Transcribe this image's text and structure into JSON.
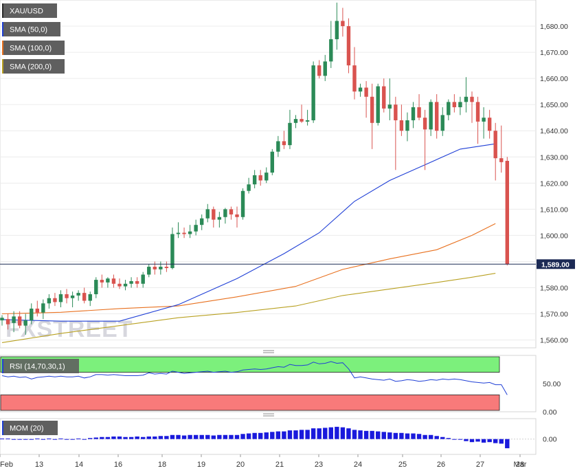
{
  "legend": {
    "symbol": "XAU/USD",
    "sma50": "SMA (50,0)",
    "sma100": "SMA (100,0)",
    "sma200": "SMA (200,0)"
  },
  "watermark": "FXSTREET",
  "last_price_label": "1,589.00",
  "colors": {
    "up": "#2b8a57",
    "down": "#d9534f",
    "sma50": "#1f3fd6",
    "sma100": "#e8701e",
    "sma200": "#b8a020",
    "rsi_line": "#1f3fd6",
    "rsi_overbought_band": "#7cf07c",
    "rsi_oversold_band": "#f87a7a",
    "mom_bar": "#1a1adc"
  },
  "chart_data": [
    {
      "type": "candlestick",
      "title": "XAU/USD",
      "ylim": [
        1557,
        1690
      ],
      "y_ticks": [
        "1,560.00",
        "1,570.00",
        "1,580.00",
        "1,590.00",
        "1,600.00",
        "1,610.00",
        "1,620.00",
        "1,630.00",
        "1,640.00",
        "1,650.00",
        "1,660.00",
        "1,670.00",
        "1,680.00"
      ],
      "y_tick_values": [
        1560,
        1570,
        1580,
        1590,
        1600,
        1610,
        1620,
        1630,
        1640,
        1650,
        1660,
        1670,
        1680
      ],
      "x_labels": [
        "Feb",
        "13",
        "14",
        "16",
        "18",
        "19",
        "20",
        "21",
        "23",
        "24",
        "25",
        "26",
        "27",
        "28",
        "Mar"
      ],
      "last_price": 1589.0,
      "ohlc": [
        [
          1567.5,
          1569.5,
          1565.5,
          1568.5
        ],
        [
          1568,
          1570,
          1564,
          1566
        ],
        [
          1566.5,
          1571,
          1563,
          1569
        ],
        [
          1569,
          1571,
          1564.5,
          1565.5
        ],
        [
          1565.5,
          1570,
          1562,
          1567.5
        ],
        [
          1567.5,
          1574,
          1566,
          1572
        ],
        [
          1572,
          1575,
          1569,
          1570.5
        ],
        [
          1570.5,
          1575.5,
          1568,
          1574
        ],
        [
          1574,
          1577.5,
          1572,
          1576
        ],
        [
          1576,
          1578,
          1573,
          1574.5
        ],
        [
          1574.5,
          1579,
          1572.5,
          1577.5
        ],
        [
          1577.5,
          1579.5,
          1574,
          1576
        ],
        [
          1576,
          1578.5,
          1572.5,
          1577
        ],
        [
          1577,
          1579,
          1575,
          1578
        ],
        [
          1578,
          1580,
          1574,
          1575
        ],
        [
          1575,
          1578.5,
          1573,
          1577.5
        ],
        [
          1577.5,
          1584,
          1576,
          1583
        ],
        [
          1583,
          1585,
          1580,
          1582
        ],
        [
          1582,
          1584,
          1580,
          1583.5
        ],
        [
          1583.5,
          1585,
          1580,
          1581.5
        ],
        [
          1581.5,
          1583.5,
          1579.5,
          1580.5
        ],
        [
          1580.5,
          1583,
          1579,
          1581.5
        ],
        [
          1581.5,
          1584,
          1580,
          1582.5
        ],
        [
          1582.5,
          1584,
          1580,
          1581.5
        ],
        [
          1581.5,
          1586,
          1580,
          1585
        ],
        [
          1585,
          1589,
          1584,
          1588
        ],
        [
          1588,
          1590,
          1585,
          1587
        ],
        [
          1587,
          1590,
          1585,
          1588
        ],
        [
          1588,
          1590,
          1586,
          1587.5
        ],
        [
          1587.5,
          1603,
          1587,
          1600.5
        ],
        [
          1600.5,
          1605,
          1599,
          1601
        ],
        [
          1601,
          1603,
          1599,
          1600.5
        ],
        [
          1600.5,
          1604,
          1599,
          1601.5
        ],
        [
          1601.5,
          1606,
          1600,
          1604
        ],
        [
          1604,
          1608,
          1602,
          1606.5
        ],
        [
          1606.5,
          1612,
          1605,
          1610
        ],
        [
          1610,
          1611,
          1603,
          1606
        ],
        [
          1606,
          1609,
          1603,
          1607
        ],
        [
          1607,
          1610.5,
          1604.5,
          1610
        ],
        [
          1610,
          1611,
          1606,
          1608
        ],
        [
          1608,
          1611,
          1603,
          1607
        ],
        [
          1607,
          1618,
          1606,
          1617
        ],
        [
          1617,
          1622,
          1616,
          1619.5
        ],
        [
          1619.5,
          1625,
          1618,
          1623
        ],
        [
          1623,
          1625,
          1619,
          1621
        ],
        [
          1621,
          1626,
          1620,
          1624
        ],
        [
          1624,
          1633,
          1623,
          1632
        ],
        [
          1632,
          1638,
          1630,
          1636
        ],
        [
          1636,
          1640,
          1633,
          1634.5
        ],
        [
          1634.5,
          1648,
          1633,
          1643
        ],
        [
          1643,
          1646,
          1641,
          1644.5
        ],
        [
          1644.5,
          1650,
          1643,
          1643.5
        ],
        [
          1643.5,
          1648,
          1642,
          1644
        ],
        [
          1644,
          1666.5,
          1643,
          1665
        ],
        [
          1665,
          1667,
          1660,
          1661
        ],
        [
          1661,
          1669,
          1659,
          1666.5
        ],
        [
          1666.5,
          1682,
          1664,
          1675
        ],
        [
          1675,
          1689,
          1671,
          1682
        ],
        [
          1682,
          1687,
          1676,
          1680
        ],
        [
          1680,
          1683,
          1662,
          1665
        ],
        [
          1665,
          1672,
          1652,
          1655
        ],
        [
          1655,
          1658,
          1653,
          1656.5
        ],
        [
          1656.5,
          1659,
          1645,
          1653
        ],
        [
          1653,
          1658,
          1633,
          1643
        ],
        [
          1643,
          1658,
          1642,
          1657
        ],
        [
          1657,
          1660,
          1647,
          1648.5
        ],
        [
          1648.5,
          1660,
          1644,
          1650
        ],
        [
          1650,
          1653,
          1625,
          1644
        ],
        [
          1644,
          1650,
          1638,
          1640
        ],
        [
          1640,
          1647,
          1636,
          1644
        ],
        [
          1644,
          1651,
          1641,
          1649
        ],
        [
          1649,
          1654,
          1644,
          1645
        ],
        [
          1645,
          1648,
          1625,
          1640.5
        ],
        [
          1640.5,
          1652,
          1638,
          1651
        ],
        [
          1651,
          1654,
          1637,
          1640
        ],
        [
          1640,
          1649,
          1638,
          1646
        ],
        [
          1646,
          1652,
          1644,
          1651
        ],
        [
          1651,
          1654,
          1647,
          1649
        ],
        [
          1649,
          1653,
          1646,
          1651
        ],
        [
          1651,
          1660.5,
          1647,
          1653
        ],
        [
          1653,
          1655,
          1643,
          1651
        ],
        [
          1651,
          1653,
          1635,
          1643.5
        ],
        [
          1643.5,
          1649,
          1637,
          1645
        ],
        [
          1645,
          1648,
          1637,
          1640
        ],
        [
          1640,
          1643,
          1621,
          1629.5
        ],
        [
          1629.5,
          1642,
          1624,
          1628
        ],
        [
          1628.5,
          1630,
          1588.5,
          1589
        ]
      ],
      "sma50": [
        [
          0,
          1567.8
        ],
        [
          10,
          1567.2
        ],
        [
          20,
          1567.2
        ],
        [
          30,
          1573.5
        ],
        [
          40,
          1583.5
        ],
        [
          48,
          1593
        ],
        [
          54,
          1601
        ],
        [
          60,
          1613
        ],
        [
          66,
          1621
        ],
        [
          72,
          1627
        ],
        [
          78,
          1633
        ],
        [
          84,
          1635
        ]
      ],
      "sma100": [
        [
          0,
          1570
        ],
        [
          10,
          1570.6
        ],
        [
          20,
          1572
        ],
        [
          30,
          1573
        ],
        [
          40,
          1576.5
        ],
        [
          50,
          1580.5
        ],
        [
          58,
          1587
        ],
        [
          66,
          1591
        ],
        [
          74,
          1594.5
        ],
        [
          80,
          1600
        ],
        [
          84,
          1604.5
        ]
      ],
      "sma200": [
        [
          0,
          1559
        ],
        [
          10,
          1562.5
        ],
        [
          20,
          1565.5
        ],
        [
          30,
          1568.5
        ],
        [
          40,
          1570.5
        ],
        [
          50,
          1573
        ],
        [
          58,
          1577
        ],
        [
          66,
          1579.5
        ],
        [
          74,
          1582
        ],
        [
          80,
          1584
        ],
        [
          84,
          1585.5
        ]
      ]
    },
    {
      "type": "line",
      "title": "RSI (14,70,30,1)",
      "ylim": [
        0,
        100
      ],
      "y_ticks": [
        "0.00",
        "50.00"
      ],
      "y_tick_values": [
        0,
        50
      ],
      "bands": {
        "overbought": 70,
        "oversold": 30
      },
      "values": [
        64,
        62,
        63,
        61,
        62,
        58,
        61,
        62,
        63,
        62,
        63,
        62,
        62,
        63,
        60,
        62,
        66,
        66,
        65,
        66,
        65,
        64,
        64,
        64,
        65,
        69,
        67,
        68,
        67,
        72,
        70,
        68,
        69,
        70,
        71,
        72,
        70,
        71,
        72,
        70,
        71,
        74,
        75,
        76,
        75,
        76,
        78,
        80,
        79,
        84,
        82,
        82,
        83,
        88,
        85,
        86,
        89,
        86,
        87,
        76,
        60,
        62,
        60,
        58,
        57,
        56,
        58,
        54,
        55,
        57,
        56,
        54,
        55,
        57,
        56,
        58,
        57,
        58,
        57,
        55,
        53,
        52,
        51,
        52,
        48,
        48,
        30
      ]
    },
    {
      "type": "bar",
      "title": "MOM (20)",
      "ylim": [
        -30,
        40
      ],
      "y_ticks": [
        "0.00"
      ],
      "y_tick_values": [
        0
      ],
      "values": [
        1,
        1,
        0,
        0,
        0,
        0,
        1,
        0,
        1,
        0,
        1,
        0,
        0,
        1,
        0,
        2,
        3,
        4,
        4,
        5,
        5,
        4,
        4,
        5,
        4,
        5,
        5,
        6,
        6,
        8,
        8,
        7,
        8,
        8,
        8,
        8,
        7,
        8,
        8,
        8,
        8,
        10,
        11,
        12,
        12,
        13,
        14,
        15,
        15,
        17,
        17,
        18,
        18,
        21,
        21,
        22,
        23,
        24,
        23,
        21,
        18,
        17,
        16,
        16,
        15,
        14,
        13,
        12,
        12,
        11,
        11,
        10,
        8,
        8,
        6,
        4,
        2,
        0,
        -1,
        -4,
        -6,
        -5,
        -7,
        -6,
        -8,
        -9,
        -18
      ]
    }
  ]
}
